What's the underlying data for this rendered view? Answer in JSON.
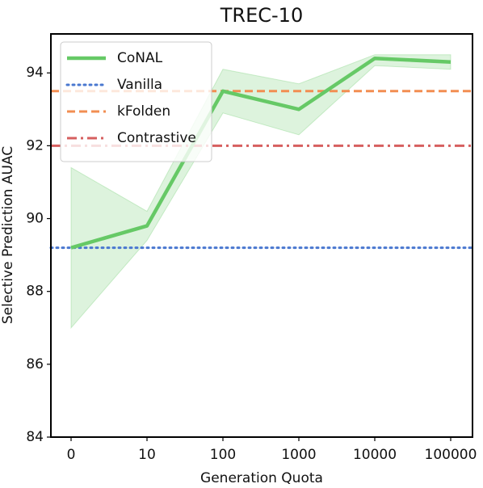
{
  "chart_data": {
    "type": "line",
    "title": "TREC-10",
    "x_label": "Generation Quota",
    "y_label": "Selective Prediction AUAC",
    "categories": [
      "0",
      "10",
      "100",
      "1000",
      "10000",
      "100000"
    ],
    "series": [
      {
        "name": "CoNAL",
        "color": "#66c966",
        "values": [
          89.2,
          89.8,
          93.5,
          93.0,
          94.4,
          94.3
        ],
        "lower": [
          87.0,
          89.4,
          92.9,
          92.3,
          94.2,
          94.1
        ],
        "upper": [
          91.4,
          90.2,
          94.1,
          93.7,
          94.5,
          94.5
        ]
      }
    ],
    "reference_lines": [
      {
        "name": "Vanilla",
        "color": "#4a78d0",
        "value": 89.2,
        "style": "dotted"
      },
      {
        "name": "kFolden",
        "color": "#f28e52",
        "value": 93.5,
        "style": "dashed"
      },
      {
        "name": "Contrastive",
        "color": "#d65f5f",
        "value": 92.0,
        "style": "dashdot"
      }
    ],
    "ylim": [
      84,
      95.07
    ],
    "yticks": [
      84,
      86,
      88,
      90,
      92,
      94
    ],
    "legend": "upper left"
  }
}
